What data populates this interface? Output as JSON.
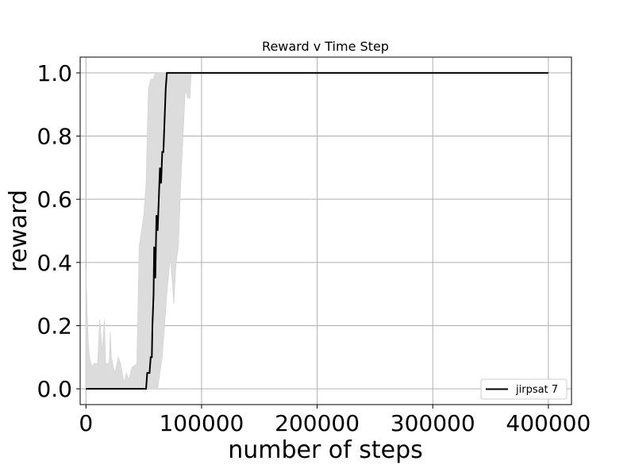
{
  "chart_data": {
    "type": "line",
    "title": "Reward v Time Step",
    "xlabel": "number of steps",
    "ylabel": "reward",
    "xlim": [
      -5000,
      420000
    ],
    "ylim": [
      -0.05,
      1.05
    ],
    "x_ticks": [
      0,
      100000,
      200000,
      300000,
      400000
    ],
    "x_tick_labels": [
      "0",
      "100000",
      "200000",
      "300000",
      "400000"
    ],
    "y_ticks": [
      0.0,
      0.2,
      0.4,
      0.6,
      0.8,
      1.0
    ],
    "y_tick_labels": [
      "0.0",
      "0.2",
      "0.4",
      "0.6",
      "0.8",
      "1.0"
    ],
    "grid": true,
    "legend_position": "lower-right",
    "colors": {
      "line": "#000000",
      "band": "#dcdcdc",
      "grid": "#b0b0b0"
    },
    "series": [
      {
        "name": "jirpsat 7",
        "x": [
          0,
          52000,
          53000,
          55000,
          56000,
          57000,
          57500,
          58500,
          59000,
          60000,
          61000,
          62000,
          63000,
          64000,
          65000,
          66000,
          67000,
          68000,
          69000,
          70000,
          400000
        ],
        "y": [
          0.0,
          0.0,
          0.05,
          0.05,
          0.1,
          0.1,
          0.2,
          0.3,
          0.45,
          0.35,
          0.55,
          0.5,
          0.6,
          0.7,
          0.65,
          0.75,
          0.75,
          0.85,
          0.95,
          1.0,
          1.0
        ]
      }
    ],
    "band": {
      "x": [
        0,
        1000,
        2000,
        3000,
        5000,
        7000,
        10000,
        12000,
        14000,
        16000,
        17000,
        20000,
        21000,
        22000,
        25000,
        28000,
        30000,
        33000,
        35000,
        37000,
        40000,
        41000,
        44000,
        46000,
        48000,
        50000,
        52000,
        54000,
        56000,
        58000,
        60000,
        62000,
        64000,
        66000,
        68000,
        70000,
        73000,
        76000,
        78000,
        80000,
        82000,
        84000,
        86000,
        88000,
        90000,
        91000
      ],
      "upper": [
        0.38,
        0.25,
        0.15,
        0.1,
        0.07,
        0.08,
        0.08,
        0.22,
        0.12,
        0.22,
        0.08,
        0.08,
        0.18,
        0.1,
        0.05,
        0.1,
        0.08,
        0.02,
        0.05,
        0.03,
        0.07,
        0.07,
        0.08,
        0.45,
        0.5,
        0.55,
        0.65,
        0.95,
        0.98,
        0.98,
        1.0,
        1.0,
        1.0,
        1.0,
        1.0,
        1.0,
        1.0,
        1.0,
        1.0,
        1.0,
        1.0,
        1.0,
        1.0,
        1.0,
        1.0,
        1.0
      ],
      "lower": [
        0.0,
        0.0,
        0.0,
        0.0,
        0.0,
        0.0,
        0.0,
        0.0,
        0.0,
        0.0,
        0.0,
        0.0,
        0.0,
        0.0,
        0.0,
        0.0,
        0.0,
        0.0,
        0.0,
        0.0,
        0.0,
        0.0,
        0.0,
        0.0,
        0.0,
        0.0,
        0.0,
        0.0,
        0.0,
        0.0,
        0.0,
        0.0,
        0.05,
        0.1,
        0.2,
        0.3,
        0.42,
        0.27,
        0.4,
        0.45,
        0.65,
        0.8,
        0.95,
        0.92,
        0.92,
        1.0
      ]
    }
  }
}
